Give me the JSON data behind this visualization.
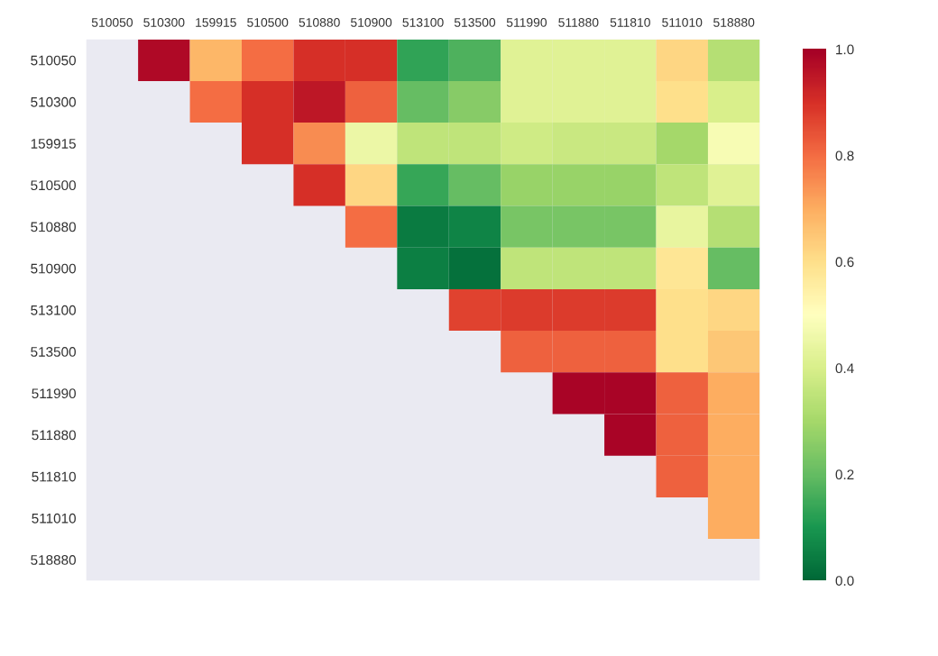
{
  "chart_data": {
    "type": "heatmap",
    "categories": [
      "510050",
      "510300",
      "159915",
      "510500",
      "510880",
      "510900",
      "513100",
      "513500",
      "511990",
      "511880",
      "511810",
      "511010",
      "518880"
    ],
    "y_categories": [
      "510050",
      "510300",
      "159915",
      "510500",
      "510880",
      "510900",
      "513100",
      "513500",
      "511990",
      "511880",
      "511810",
      "511010",
      "518880"
    ],
    "cells": [
      [
        null,
        0.98,
        0.68,
        0.8,
        0.9,
        0.9,
        0.13,
        0.17,
        0.42,
        0.42,
        0.42,
        0.62,
        0.33
      ],
      [
        null,
        null,
        0.8,
        0.9,
        0.95,
        0.82,
        0.2,
        0.25,
        0.42,
        0.42,
        0.42,
        0.6,
        0.4
      ],
      [
        null,
        null,
        null,
        0.9,
        0.75,
        0.45,
        0.35,
        0.35,
        0.38,
        0.37,
        0.37,
        0.3,
        0.48
      ],
      [
        null,
        null,
        null,
        null,
        0.9,
        0.62,
        0.14,
        0.2,
        0.28,
        0.28,
        0.28,
        0.35,
        0.42
      ],
      [
        null,
        null,
        null,
        null,
        null,
        0.8,
        0.04,
        0.06,
        0.23,
        0.23,
        0.23,
        0.44,
        0.33
      ],
      [
        null,
        null,
        null,
        null,
        null,
        null,
        0.05,
        0.02,
        0.35,
        0.35,
        0.35,
        0.58,
        0.2
      ],
      [
        null,
        null,
        null,
        null,
        null,
        null,
        null,
        0.87,
        0.88,
        0.88,
        0.88,
        0.6,
        0.62
      ],
      [
        null,
        null,
        null,
        null,
        null,
        null,
        null,
        null,
        0.82,
        0.82,
        0.82,
        0.6,
        0.65
      ],
      [
        null,
        null,
        null,
        null,
        null,
        null,
        null,
        null,
        null,
        0.99,
        0.99,
        0.82,
        0.7
      ],
      [
        null,
        null,
        null,
        null,
        null,
        null,
        null,
        null,
        null,
        null,
        0.99,
        0.82,
        0.7
      ],
      [
        null,
        null,
        null,
        null,
        null,
        null,
        null,
        null,
        null,
        null,
        null,
        0.82,
        0.7
      ],
      [
        null,
        null,
        null,
        null,
        null,
        null,
        null,
        null,
        null,
        null,
        null,
        null,
        0.7
      ],
      [
        null,
        null,
        null,
        null,
        null,
        null,
        null,
        null,
        null,
        null,
        null,
        null,
        null
      ]
    ],
    "clim": [
      0,
      1
    ],
    "cticks": [
      {
        "value": 0,
        "label": "0.0"
      },
      {
        "value": 0.2,
        "label": "0.2"
      },
      {
        "value": 0.4,
        "label": "0.4"
      },
      {
        "value": 0.6,
        "label": "0.6"
      },
      {
        "value": 0.8,
        "label": "0.8"
      },
      {
        "value": 1,
        "label": "1.0"
      }
    ]
  }
}
